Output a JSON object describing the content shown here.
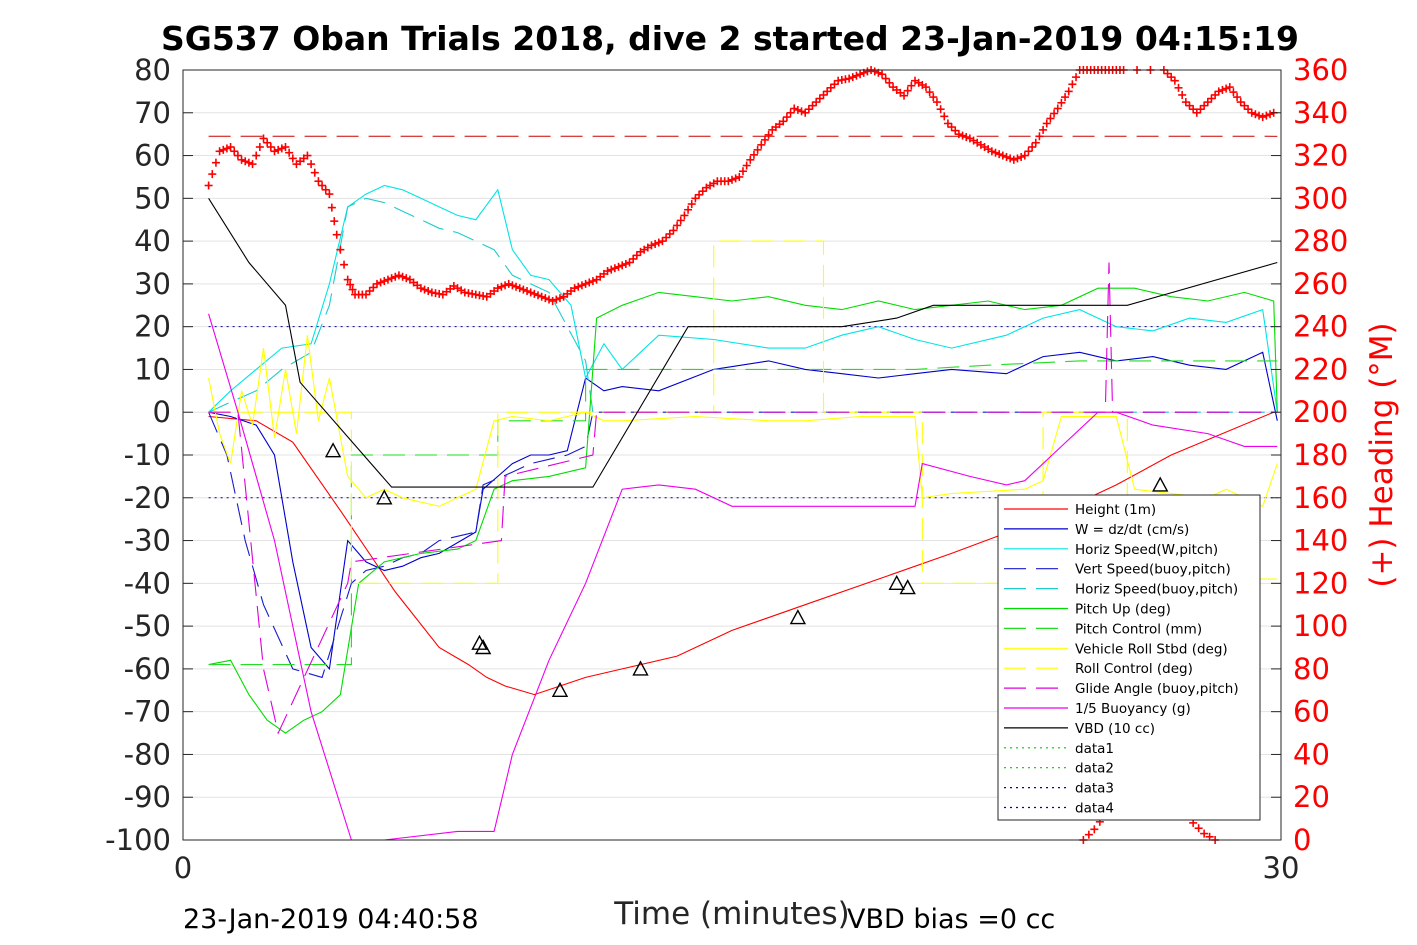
{
  "chart_data": {
    "type": "line",
    "title": "SG537 Oban Trials 2018, dive 2 started 23-Jan-2019 04:15:19",
    "xlabel": "Time (minutes)",
    "ylabel_right": "(+) Heading (°M)",
    "xlim": [
      0,
      30
    ],
    "ylim": [
      -100,
      80
    ],
    "ylim_right": [
      0,
      360
    ],
    "x_ticks": [
      "0",
      "30"
    ],
    "y_ticks": [
      "80",
      "70",
      "60",
      "50",
      "40",
      "30",
      "20",
      "10",
      "0",
      "-10",
      "-20",
      "-30",
      "-40",
      "-50",
      "-60",
      "-70",
      "-80",
      "-90",
      "-100"
    ],
    "y_ticks_right": [
      "360",
      "340",
      "320",
      "300",
      "280",
      "260",
      "240",
      "220",
      "200",
      "180",
      "160",
      "140",
      "120",
      "100",
      "80",
      "60",
      "40",
      "20",
      "0"
    ],
    "grid": true,
    "legend_position": "bottom-right",
    "footer_left": "23-Jan-2019 04:40:58",
    "footer_right": "VBD bias =0 cc",
    "colors": {
      "height": "#ff0000",
      "w": "#0000cc",
      "hspeed": "#00e5e5",
      "pitch": "#00dd00",
      "roll": "#ffff00",
      "glide": "#dd00dd",
      "buoy": "#ee00ee",
      "vbd": "#000000",
      "heading": "#ff0000",
      "data": "#00aa00",
      "data_blue": "#0000aa"
    },
    "series": [
      {
        "name": "Height (1m)",
        "style": "solid",
        "color": "#ff0000",
        "x": [
          0.7,
          2.0,
          3.0,
          4.3,
          5.8,
          7.0,
          7.8,
          8.3,
          8.8,
          9.6,
          10.3,
          11.0,
          12.0,
          13.5,
          15.0,
          17.0,
          19.0,
          21.0,
          23.5,
          25.5,
          27.0,
          29.8
        ],
        "y": [
          -1,
          -2,
          -7,
          -23,
          -42,
          -55,
          -59,
          -62,
          -64,
          -66,
          -64,
          -62,
          -60,
          -57,
          -51,
          -45,
          -39,
          -33,
          -25,
          -17,
          -10,
          0
        ]
      },
      {
        "name": "W = dz/dt (cm/s)",
        "style": "solid",
        "color": "#0000cc",
        "x": [
          0.7,
          1.3,
          2.0,
          2.5,
          3.0,
          3.5,
          4.0,
          4.5,
          5.0,
          5.5,
          6.0,
          6.5,
          7.0,
          8.0,
          8.2,
          9.0,
          9.5,
          10.0,
          10.5,
          11.0,
          11.5,
          12.0,
          13.0,
          14.5,
          16.0,
          17.0,
          18.0,
          19.0,
          20.0,
          21.0,
          22.5,
          23.5,
          24.5,
          25.5,
          26.5,
          27.5,
          28.5,
          29.5,
          29.9
        ],
        "y": [
          0,
          -1,
          -3,
          -10,
          -35,
          -55,
          -60,
          -30,
          -35,
          -37,
          -36,
          -34,
          -33,
          -28,
          -18,
          -12,
          -10,
          -10,
          -9,
          8,
          5,
          6,
          5,
          10,
          12,
          10,
          9,
          8,
          9,
          10,
          9,
          13,
          14,
          12,
          13,
          11,
          10,
          14,
          -2
        ]
      },
      {
        "name": "Horiz Speed(W,pitch)",
        "style": "solid",
        "color": "#00e5e5",
        "x": [
          0.7,
          1.3,
          2.0,
          2.7,
          3.5,
          4.0,
          4.5,
          5.0,
          5.5,
          6.0,
          6.5,
          7.0,
          7.5,
          8.0,
          8.6,
          9.0,
          9.5,
          10.0,
          10.6,
          11.0,
          11.5,
          12.0,
          13.0,
          14.5,
          16.0,
          17.0,
          18.0,
          19.0,
          20.0,
          21.0,
          22.5,
          23.5,
          24.5,
          25.5,
          26.5,
          27.5,
          28.5,
          29.5,
          29.9
        ],
        "y": [
          0,
          5,
          10,
          15,
          16,
          30,
          48,
          51,
          53,
          52,
          50,
          48,
          46,
          45,
          52,
          38,
          32,
          31,
          25,
          8,
          16,
          10,
          18,
          17,
          15,
          15,
          18,
          20,
          17,
          15,
          18,
          22,
          24,
          20,
          19,
          22,
          21,
          24,
          0
        ]
      },
      {
        "name": "Vert Speed(buoy,pitch)",
        "style": "dash",
        "color": "#1a1acc",
        "x": [
          0.7,
          1.2,
          1.7,
          2.2,
          3.0,
          3.8,
          4.6,
          5.0,
          5.5,
          6.0,
          6.5,
          7.0,
          8.0,
          8.2,
          9.0,
          9.5,
          10.0,
          10.5,
          11.0,
          11.2,
          29.9
        ],
        "y": [
          0,
          -10,
          -30,
          -45,
          -60,
          -62,
          -40,
          -37,
          -36,
          -34,
          -33,
          -30,
          -28,
          -17,
          -14,
          -12,
          -11,
          -10,
          -8,
          0,
          0
        ]
      },
      {
        "name": "Horiz Speed(buoy,pitch)",
        "style": "dash",
        "color": "#1ecccc",
        "x": [
          0.7,
          1.2,
          2.0,
          2.7,
          3.5,
          4.0,
          4.5,
          5.0,
          5.5,
          6.0,
          6.5,
          7.0,
          7.5,
          8.0,
          8.5,
          9.0,
          9.5,
          10.0,
          10.5,
          11.0,
          11.2,
          29.9
        ],
        "y": [
          0,
          2,
          5,
          10,
          14,
          25,
          48,
          50,
          49,
          47,
          45,
          43,
          42,
          40,
          38,
          32,
          30,
          28,
          20,
          12,
          0,
          0
        ]
      },
      {
        "name": "Pitch Up (deg)",
        "style": "solid",
        "color": "#00dd00",
        "x": [
          0.7,
          1.3,
          1.8,
          2.3,
          2.8,
          3.3,
          3.8,
          4.3,
          4.8,
          5.5,
          6.5,
          7.5,
          8.0,
          8.5,
          9.0,
          10.0,
          11.0,
          11.3,
          12.0,
          13.0,
          14.0,
          15.0,
          16.0,
          17.0,
          18.0,
          19.0,
          20.0,
          21.0,
          22.0,
          23.0,
          24.0,
          25.0,
          26.0,
          27.0,
          28.0,
          29.0,
          29.8,
          29.9
        ],
        "y": [
          -59,
          -58,
          -66,
          -72,
          -75,
          -72,
          -70,
          -66,
          -40,
          -35,
          -33,
          -32,
          -30,
          -18,
          -16,
          -15,
          -13,
          22,
          25,
          28,
          27,
          26,
          27,
          25,
          24,
          26,
          24,
          25,
          26,
          24,
          25,
          29,
          29,
          27,
          26,
          28,
          26,
          0
        ]
      },
      {
        "name": "Pitch Control (mm)",
        "style": "dash",
        "color": "#22dd22",
        "x": [
          0.7,
          3.0,
          4.6,
          4.6,
          8.6,
          8.6,
          11.0,
          11.0,
          20.0,
          22.0,
          24.5,
          25.5,
          29.9
        ],
        "y": [
          -59,
          -59,
          -59,
          -10,
          -10,
          -2,
          -2,
          10,
          10,
          11,
          12,
          12,
          12
        ],
        "step": true
      },
      {
        "name": "Vehicle Roll Stbd (deg)",
        "style": "solid",
        "color": "#ffff00",
        "x": [
          0.7,
          1.0,
          1.3,
          1.6,
          1.9,
          2.2,
          2.5,
          2.8,
          3.1,
          3.4,
          3.7,
          4.0,
          4.5,
          5.0,
          5.5,
          6.0,
          7.0,
          8.0,
          8.5,
          9.0,
          10.0,
          11.0,
          11.5,
          12.0,
          14.0,
          16.0,
          17.0,
          18.5,
          20.0,
          20.2,
          21.0,
          23.0,
          23.5,
          24.0,
          25.5,
          26.0,
          27.0,
          28.0,
          28.5,
          29.5,
          29.9
        ],
        "y": [
          8,
          -5,
          -12,
          5,
          -3,
          15,
          -6,
          10,
          -5,
          18,
          -2,
          8,
          -15,
          -20,
          -18,
          -20,
          -22,
          -18,
          -2,
          -1,
          -2,
          0,
          -2,
          -2,
          -1,
          -2,
          -2,
          -1,
          -1,
          -20,
          -19,
          -18,
          -16,
          -1,
          -1,
          -18,
          -19,
          -20,
          -18,
          -22,
          -12
        ]
      },
      {
        "name": "Roll Control (deg)",
        "style": "dash",
        "color": "#ffff00",
        "x": [
          0.7,
          4.6,
          4.6,
          8.6,
          8.6,
          14.5,
          14.5,
          17.5,
          17.5,
          20.2,
          20.2,
          23.5,
          23.5,
          25.8,
          25.8,
          29.9
        ],
        "y": [
          0,
          0,
          -40,
          -40,
          0,
          0,
          40,
          40,
          0,
          0,
          -40,
          -40,
          0,
          0,
          -39,
          -39
        ],
        "step": true
      },
      {
        "name": "Glide Angle (buoy,pitch)",
        "style": "dash",
        "color": "#dd00dd",
        "x": [
          0.7,
          1.5,
          2.2,
          2.6,
          4.5,
          4.6,
          8.7,
          8.8,
          11.2,
          11.3,
          25.2,
          25.3,
          25.4,
          29.9
        ],
        "y": [
          0,
          0,
          -60,
          -75,
          -40,
          -35,
          -30,
          -15,
          -10,
          0,
          0,
          35,
          0,
          0
        ]
      },
      {
        "name": "1/5 Buoyancy (g)",
        "style": "solid",
        "color": "#ee00ee",
        "x": [
          0.7,
          1.5,
          2.5,
          3.5,
          4.6,
          5.5,
          7.5,
          8.5,
          9.0,
          10.0,
          11.0,
          12.0,
          13.0,
          14.0,
          15.0,
          16.0,
          17.0,
          18.0,
          19.0,
          20.0,
          20.2,
          21.5,
          22.5,
          23.0,
          24.0,
          25.0,
          25.5,
          26.5,
          28.0,
          29.0,
          29.9
        ],
        "y": [
          23,
          0,
          -30,
          -70,
          -100,
          -100,
          -98,
          -98,
          -80,
          -58,
          -40,
          -18,
          -17,
          -18,
          -22,
          -22,
          -22,
          -22,
          -22,
          -22,
          -12,
          -15,
          -17,
          -16,
          -8,
          0,
          0,
          -3,
          -5,
          -8,
          -8
        ]
      },
      {
        "name": "VBD (10 cc)",
        "style": "solid",
        "color": "#000000",
        "x": [
          0.7,
          1.8,
          2.8,
          3.2,
          5.7,
          8.7,
          11.2,
          13.8,
          15.3,
          17.0,
          17.5,
          18.0,
          19.5,
          20.5,
          21.5,
          22.5,
          23.0,
          24.5,
          25.8,
          29.9
        ],
        "y": [
          50,
          35,
          25,
          7,
          -17.5,
          -17.5,
          -17.5,
          20,
          20,
          20,
          20,
          20,
          22,
          25,
          25,
          25,
          25,
          25,
          25,
          35
        ]
      }
    ],
    "data_markers": [
      {
        "name": "Height dive markers",
        "x": [
          4.1,
          5.5,
          8.1,
          8.2,
          10.3,
          12.5,
          16.8,
          19.5,
          19.8,
          23.1,
          23.3,
          26.7
        ],
        "y": [
          -9,
          -20,
          -54,
          -55,
          -65,
          -60,
          -48,
          -40,
          -41,
          -31,
          -30,
          -17
        ]
      }
    ],
    "data_reference_lines": [
      {
        "name": "data1",
        "style": "dotted",
        "color": "#00cc00"
      },
      {
        "name": "data2",
        "style": "dotted",
        "color": "#00cc00"
      },
      {
        "name": "data3",
        "style": "dotted",
        "color": "#0000aa"
      },
      {
        "name": "data4",
        "style": "dotted",
        "color": "#0000aa"
      }
    ],
    "horizontal_lines": [
      {
        "y": 20,
        "color": "#0000aa",
        "style": "dotted",
        "x_range": [
          0.7,
          29.9
        ]
      },
      {
        "y": -20,
        "color": "#0000aa",
        "style": "dotted",
        "x_range": [
          0.7,
          29.9
        ]
      },
      {
        "y": 64.5,
        "color": "#cc0000",
        "style": "dash",
        "x_range": [
          0.7,
          29.9
        ]
      }
    ],
    "heading": {
      "name": "(+) Heading (°M)",
      "x": [
        0.7,
        1.0,
        1.3,
        1.6,
        1.9,
        2.2,
        2.5,
        2.8,
        3.1,
        3.4,
        3.7,
        4.0,
        4.2,
        4.5,
        4.7,
        5.0,
        5.3,
        5.6,
        5.9,
        6.2,
        6.5,
        6.8,
        7.1,
        7.4,
        7.7,
        8.0,
        8.3,
        8.6,
        8.9,
        9.2,
        9.5,
        9.8,
        10.1,
        10.4,
        10.7,
        11.0,
        11.3,
        11.6,
        11.9,
        12.2,
        12.5,
        12.8,
        13.1,
        13.4,
        13.7,
        14.0,
        14.3,
        14.6,
        14.9,
        15.2,
        15.5,
        15.8,
        16.1,
        16.4,
        16.7,
        17.0,
        17.3,
        17.6,
        17.9,
        18.2,
        18.5,
        18.8,
        19.1,
        19.4,
        19.7,
        20.0,
        20.3,
        20.6,
        20.9,
        21.2,
        21.5,
        21.8,
        22.1,
        22.4,
        22.7,
        23.0,
        23.3,
        23.6,
        23.9,
        24.2,
        24.5,
        24.8,
        25.1,
        25.4,
        25.7,
        26.8,
        27.1,
        27.4,
        27.7,
        28.0,
        28.3,
        28.6,
        28.9,
        29.2,
        29.5,
        29.8
      ],
      "y": [
        306,
        322,
        324,
        318,
        316,
        328,
        322,
        324,
        316,
        320,
        308,
        302,
        283,
        262,
        255,
        255,
        260,
        262,
        264,
        262,
        258,
        256,
        255,
        259,
        256,
        255,
        254,
        258,
        260,
        258,
        256,
        254,
        252,
        254,
        258,
        260,
        262,
        266,
        268,
        270,
        275,
        278,
        280,
        285,
        292,
        300,
        305,
        308,
        308,
        310,
        318,
        325,
        332,
        336,
        342,
        340,
        345,
        350,
        355,
        356,
        358,
        360,
        358,
        352,
        348,
        355,
        352,
        345,
        335,
        330,
        328,
        325,
        322,
        320,
        318,
        320,
        326,
        335,
        342,
        350,
        360,
        360,
        360,
        360,
        360,
        360,
        355,
        345,
        340,
        345,
        350,
        352,
        345,
        340,
        338,
        340
      ],
      "x2": [
        24.6,
        24.9,
        25.2,
        25.5,
        25.8,
        26.1,
        26.4,
        26.7,
        27.0,
        27.3,
        27.6,
        27.9,
        28.2
      ],
      "y2": [
        0,
        5,
        12,
        20,
        26,
        30,
        30,
        25,
        20,
        14,
        8,
        3,
        0
      ]
    }
  }
}
